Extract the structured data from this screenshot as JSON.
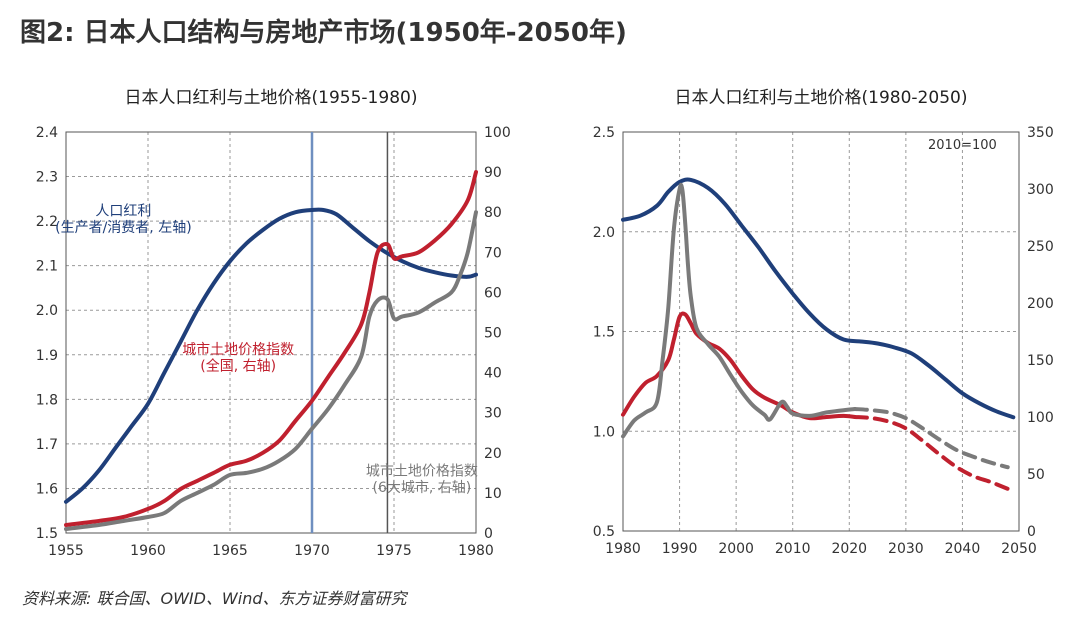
{
  "figure": {
    "title": "图2: 日本人口结构与房地产市场(1950年-2050年)",
    "source": "资料来源: 联合国、OWID、Wind、东方证券财富研究"
  },
  "colors": {
    "blue": "#1f3f7a",
    "red": "#c0202e",
    "gray": "#7a7a7a",
    "vline_blue": "#6f8fc0",
    "vline_dark": "#555555",
    "grid": "#9a9a9a"
  },
  "chart_data": [
    {
      "type": "line",
      "title": "日本人口红利与土地价格(1955-1980)",
      "x_ticks": [
        1955,
        1960,
        1965,
        1970,
        1975,
        1980
      ],
      "xlim": [
        1955,
        1980
      ],
      "y_left": {
        "ticks": [
          "1.5",
          "1.6",
          "1.7",
          "1.8",
          "1.9",
          "2.0",
          "2.1",
          "2.2",
          "2.3",
          "2.4"
        ],
        "lim": [
          1.5,
          2.4
        ]
      },
      "y_right": {
        "ticks": [
          "0",
          "10",
          "20",
          "30",
          "40",
          "50",
          "60",
          "70",
          "80",
          "90",
          "100"
        ],
        "lim": [
          0,
          100
        ]
      },
      "grid": true,
      "vlines": [
        {
          "x": 1970,
          "color": "vline_blue"
        },
        {
          "x": 1974.6,
          "color": "vline_dark"
        }
      ],
      "annotations": [
        {
          "text": "人口红利",
          "color": "blue",
          "x": 1958.5,
          "y": 2.224,
          "axis": "left"
        },
        {
          "text": "(生产者/消费者, 左轴)",
          "color": "blue",
          "x": 1958.5,
          "y": 2.187,
          "axis": "left"
        },
        {
          "text": "城市土地价格指数",
          "color": "red",
          "x": 1965.5,
          "y": 1.913,
          "axis": "left"
        },
        {
          "text": "(全国, 右轴)",
          "color": "red",
          "x": 1965.5,
          "y": 1.876,
          "axis": "left"
        },
        {
          "text": "城市土地价格指数",
          "color": "gray",
          "x": 1976.7,
          "y": 1.64,
          "axis": "left"
        },
        {
          "text": "(6大城市, 右轴)",
          "color": "gray",
          "x": 1976.7,
          "y": 1.603,
          "axis": "left"
        }
      ],
      "series": [
        {
          "color": "blue",
          "axis": "left",
          "x": [
            1955,
            1956,
            1957,
            1958,
            1959,
            1960,
            1961,
            1962,
            1963,
            1964,
            1965,
            1966,
            1967,
            1968,
            1969,
            1970,
            1970.7,
            1971.5,
            1972.5,
            1973.5,
            1974.5,
            1975.5,
            1976.5,
            1977.5,
            1978.5,
            1979.5,
            1980
          ],
          "y": [
            1.57,
            1.6,
            1.64,
            1.69,
            1.74,
            1.79,
            1.86,
            1.93,
            2.0,
            2.06,
            2.11,
            2.15,
            2.18,
            2.205,
            2.22,
            2.225,
            2.225,
            2.215,
            2.185,
            2.155,
            2.13,
            2.11,
            2.095,
            2.085,
            2.078,
            2.075,
            2.08
          ]
        },
        {
          "color": "red",
          "axis": "right",
          "x": [
            1955,
            1957,
            1958.5,
            1960,
            1961,
            1962,
            1963,
            1964,
            1965,
            1966,
            1967,
            1968,
            1969,
            1970,
            1971,
            1972,
            1973,
            1973.5,
            1974,
            1974.6,
            1975,
            1975.5,
            1976.5,
            1977.5,
            1978.5,
            1979.5,
            1980
          ],
          "y": [
            2,
            3,
            4,
            6,
            8,
            11,
            13,
            15,
            17,
            18,
            20,
            23,
            28,
            33,
            39,
            45,
            52,
            60,
            70,
            72,
            68.5,
            69,
            70,
            73,
            77,
            83,
            90
          ]
        },
        {
          "color": "gray",
          "axis": "right",
          "x": [
            1955,
            1957,
            1958.5,
            1960,
            1961,
            1962,
            1963,
            1964,
            1965,
            1966,
            1967,
            1968,
            1969,
            1970,
            1971,
            1972,
            1973,
            1973.5,
            1974,
            1974.6,
            1975,
            1975.5,
            1976.5,
            1977.5,
            1978.5,
            1979,
            1979.5,
            1980
          ],
          "y": [
            1,
            2,
            3,
            4,
            5,
            8,
            10,
            12,
            14.5,
            15,
            16,
            18,
            21,
            26,
            31,
            37,
            44,
            54,
            58,
            58.3,
            53.5,
            54,
            55,
            57.5,
            60,
            64,
            70,
            80
          ]
        }
      ]
    },
    {
      "type": "line",
      "title": "日本人口红利与土地价格(1980-2050)",
      "x_ticks": [
        1980,
        1990,
        2000,
        2010,
        2020,
        2030,
        2040,
        2050
      ],
      "xlim": [
        1980,
        2050
      ],
      "y_left": {
        "ticks": [
          "0.5",
          "1.0",
          "1.5",
          "2.0",
          "2.5"
        ],
        "lim": [
          0.5,
          2.5
        ]
      },
      "y_right": {
        "ticks": [
          "0",
          "50",
          "100",
          "150",
          "200",
          "250",
          "300",
          "350"
        ],
        "lim": [
          0,
          350
        ]
      },
      "grid": true,
      "annotations": [
        {
          "text": "2010=100",
          "color": "dark",
          "x": 2040,
          "y": 2.44,
          "axis": "left"
        }
      ],
      "series": [
        {
          "color": "blue",
          "axis": "left",
          "style": "solid",
          "x": [
            1980,
            1983,
            1986,
            1988,
            1990,
            1992,
            1995,
            1998,
            2001,
            2004,
            2007,
            2010,
            2013,
            2016,
            2019,
            2022,
            2025,
            2028,
            2031,
            2034,
            2037,
            2040,
            2043,
            2046,
            2049
          ],
          "y": [
            2.06,
            2.08,
            2.13,
            2.2,
            2.25,
            2.26,
            2.22,
            2.14,
            2.03,
            1.92,
            1.8,
            1.69,
            1.59,
            1.51,
            1.46,
            1.45,
            1.44,
            1.42,
            1.39,
            1.33,
            1.26,
            1.19,
            1.14,
            1.1,
            1.07
          ]
        },
        {
          "color": "red",
          "axis": "right",
          "style": "solid",
          "x": [
            1980,
            1982,
            1984,
            1986,
            1988,
            1989,
            1990,
            1991,
            1992,
            1993,
            1995,
            1997,
            1999,
            2001,
            2003,
            2005,
            2008,
            2010,
            2013,
            2016,
            2019,
            2021
          ],
          "y": [
            102,
            118,
            130,
            136,
            150,
            168,
            188,
            190,
            182,
            173,
            165,
            160,
            150,
            136,
            124,
            117,
            110,
            104,
            99,
            100,
            101,
            100
          ]
        },
        {
          "color": "red",
          "axis": "right",
          "style": "dashed",
          "x": [
            2021,
            2024,
            2027,
            2030,
            2033,
            2036,
            2039,
            2042,
            2045,
            2048
          ],
          "y": [
            100,
            99,
            96,
            90,
            79,
            67,
            56,
            48,
            43,
            37
          ]
        },
        {
          "color": "gray",
          "axis": "right",
          "style": "solid",
          "x": [
            1980,
            1982,
            1984,
            1986,
            1987,
            1988,
            1989,
            1990,
            1990.5,
            1991,
            1991.5,
            1992,
            1993,
            1995,
            1997,
            1999,
            2001,
            2003,
            2005,
            2006,
            2008,
            2009,
            2010,
            2013,
            2016,
            2019,
            2021
          ],
          "y": [
            83,
            97,
            104,
            113,
            150,
            196,
            265,
            300,
            299,
            270,
            232,
            205,
            178,
            164,
            153,
            137,
            122,
            110,
            102,
            98,
            113,
            109,
            103,
            101,
            104,
            106,
            107
          ]
        },
        {
          "color": "gray",
          "axis": "right",
          "style": "dashed",
          "x": [
            2021,
            2024,
            2027,
            2030,
            2033,
            2036,
            2039,
            2042,
            2045,
            2048
          ],
          "y": [
            107,
            106,
            104,
            99,
            90,
            80,
            71,
            65,
            60,
            56
          ]
        }
      ]
    }
  ]
}
